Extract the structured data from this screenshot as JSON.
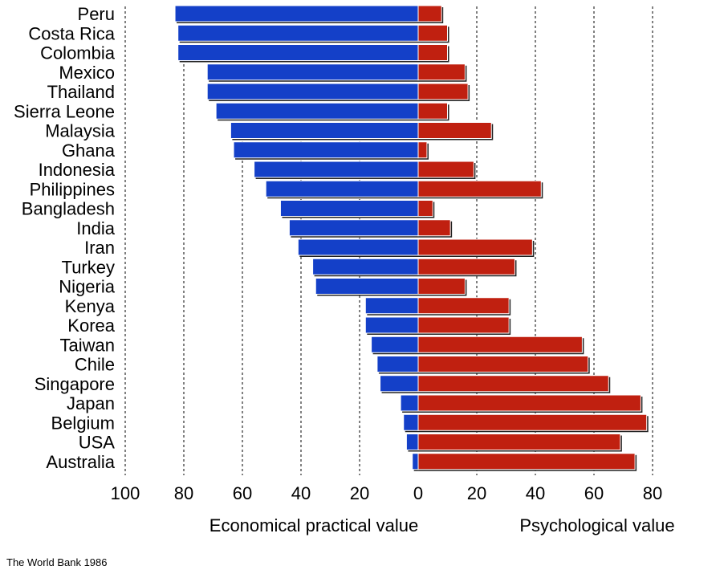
{
  "chart_data": {
    "type": "bar",
    "orientation": "horizontal",
    "layout": "diverging",
    "categories": [
      "Peru",
      "Costa Rica",
      "Colombia",
      "Mexico",
      "Thailand",
      "Sierra Leone",
      "Malaysia",
      "Ghana",
      "Indonesia",
      "Philippines",
      "Bangladesh",
      "India",
      "Iran",
      "Turkey",
      "Nigeria",
      "Kenya",
      "Korea",
      "Taiwan",
      "Chile",
      "Singapore",
      "Japan",
      "Belgium",
      "USA",
      "Australia"
    ],
    "series": [
      {
        "name": "Economical practical value",
        "side": "left",
        "color": "#1440c8",
        "values": [
          83,
          82,
          82,
          72,
          72,
          69,
          64,
          63,
          56,
          52,
          47,
          44,
          41,
          36,
          35,
          18,
          18,
          16,
          14,
          13,
          6,
          5,
          4,
          2
        ]
      },
      {
        "name": "Psychological value",
        "side": "right",
        "color": "#c02010",
        "values": [
          8,
          10,
          10,
          16,
          17,
          10,
          25,
          3,
          19,
          42,
          5,
          11,
          39,
          33,
          16,
          31,
          31,
          56,
          58,
          65,
          76,
          78,
          69,
          74
        ]
      }
    ],
    "left_axis": {
      "ticks": [
        "100",
        "80",
        "60",
        "40",
        "20",
        "0"
      ],
      "range": [
        100,
        0
      ]
    },
    "right_axis": {
      "ticks": [
        "20",
        "40",
        "60",
        "80"
      ],
      "range": [
        0,
        80
      ]
    },
    "grid": "vertical dotted",
    "source": "The World Bank 1986"
  }
}
